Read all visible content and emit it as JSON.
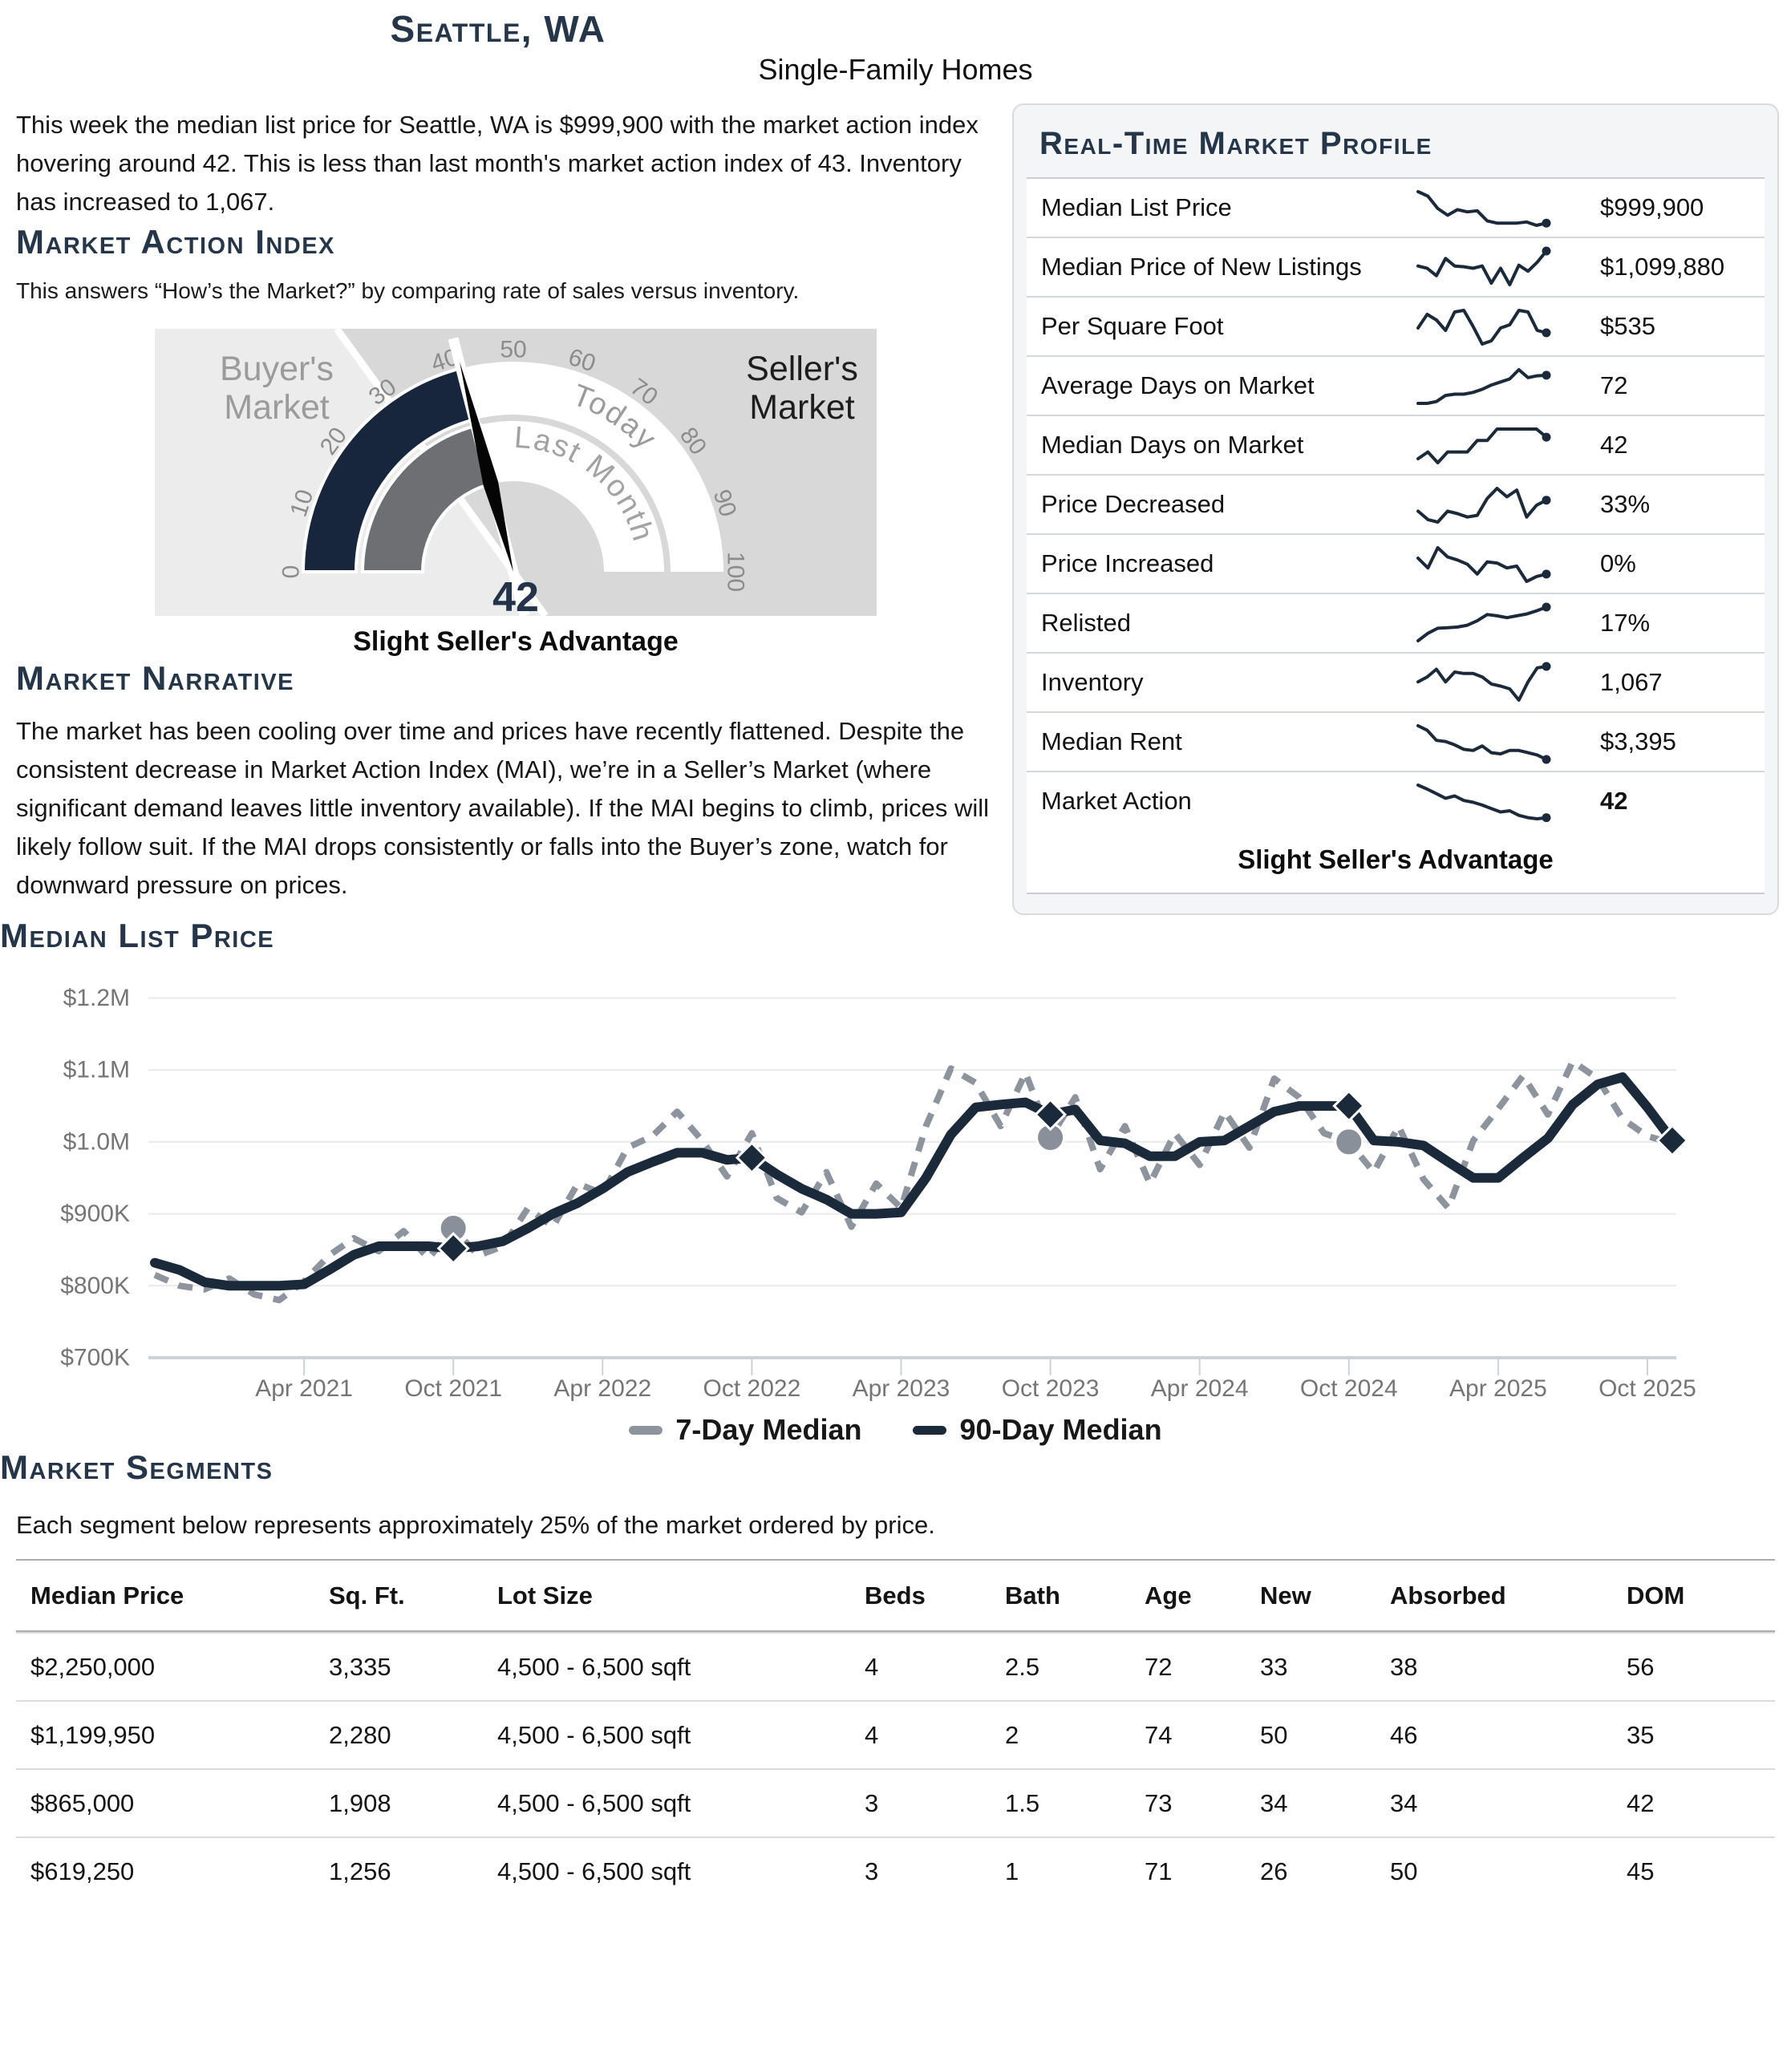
{
  "page": {
    "title": "Seattle, WA",
    "subtitle": "Single-Family Homes",
    "intro": "This week the median list price for Seattle, WA is $999,900 with the market action index hovering around 42. This is less than last month's market action index of 43. Inventory has increased to 1,067."
  },
  "colors": {
    "navy": "#1b2a3b",
    "heading_navy": "#25364a",
    "dashed_gray": "#8e949d",
    "axis_gray": "#757575",
    "grid_line": "#e8eaec",
    "axis_line": "#ccd2d8",
    "gauge_navy": "#17263c",
    "gauge_gray_ring": "#6e6f72",
    "gauge_bg_left": "#ececec",
    "gauge_bg_right": "#d8d8d9",
    "gauge_tick": "#8c8c8c",
    "buyer_text": "#9b9b9b",
    "seller_text": "#1d1d1d",
    "value_navy": "#22334a"
  },
  "market_action_index": {
    "heading": "Market Action Index",
    "description": "This answers “How’s the Market?” by comparing rate of sales versus inventory.",
    "gauge": {
      "min": 0,
      "max": 100,
      "ticks": [
        0,
        10,
        20,
        30,
        40,
        50,
        60,
        70,
        80,
        90,
        100
      ],
      "today_value": 42,
      "last_month_value": 43,
      "split_value": 30,
      "display_value": "42",
      "zone_left": "Buyer's Market",
      "zone_right": "Seller's Market",
      "ring_outer_label": "Today",
      "ring_inner_label": "Last Month",
      "caption": "Slight Seller's Advantage"
    }
  },
  "market_narrative": {
    "heading": "Market Narrative",
    "text": "The market has been cooling over time and prices have recently flattened. Despite the consistent decrease in Market Action Index (MAI), we’re in a Seller’s Market (where significant demand leaves little inventory available). If the MAI begins to climb, prices will likely follow suit. If the MAI drops consistently or falls into the Buyer’s zone, watch for downward pressure on prices."
  },
  "profile": {
    "heading": "Real-Time Market Profile",
    "caption": "Slight Seller's Advantage",
    "rows": [
      {
        "label": "Median List Price",
        "value": "$999,900",
        "spark": [
          90,
          82,
          60,
          48,
          58,
          54,
          56,
          38,
          34,
          34,
          34,
          36,
          30,
          34
        ]
      },
      {
        "label": "Median Price of New Listings",
        "value": "$1,099,880",
        "spark": [
          55,
          52,
          42,
          65,
          55,
          54,
          52,
          55,
          32,
          52,
          30,
          56,
          48,
          60,
          75
        ]
      },
      {
        "label": "Per Square Foot",
        "value": "$535",
        "spark": [
          48,
          65,
          58,
          45,
          68,
          70,
          50,
          28,
          32,
          48,
          52,
          70,
          68,
          45,
          42
        ]
      },
      {
        "label": "Average Days on Market",
        "value": "72",
        "spark": [
          15,
          15,
          18,
          28,
          30,
          30,
          33,
          38,
          45,
          50,
          55,
          70,
          57,
          60,
          61
        ]
      },
      {
        "label": "Median Days on Market",
        "value": "42",
        "spark": [
          18,
          28,
          12,
          28,
          28,
          28,
          45,
          45,
          62,
          62,
          62,
          62,
          62,
          50
        ]
      },
      {
        "label": "Price Decreased",
        "value": "33%",
        "spark": [
          45,
          35,
          32,
          45,
          42,
          38,
          40,
          60,
          72,
          62,
          70,
          38,
          52,
          58
        ]
      },
      {
        "label": "Price Increased",
        "value": "0%",
        "spark": [
          68,
          52,
          85,
          70,
          65,
          58,
          42,
          62,
          60,
          52,
          55,
          30,
          38,
          42
        ]
      },
      {
        "label": "Relisted",
        "value": "17%",
        "spark": [
          10,
          22,
          30,
          31,
          32,
          35,
          42,
          52,
          50,
          47,
          50,
          53,
          58,
          64
        ]
      },
      {
        "label": "Inventory",
        "value": "1,067",
        "spark": [
          48,
          55,
          66,
          48,
          62,
          60,
          60,
          55,
          45,
          42,
          38,
          22,
          48,
          68,
          70
        ]
      },
      {
        "label": "Median Rent",
        "value": "$3,395",
        "spark": [
          88,
          80,
          62,
          60,
          54,
          46,
          44,
          52,
          40,
          38,
          44,
          44,
          40,
          36,
          28
        ]
      },
      {
        "label": "Market Action",
        "value": "42",
        "bold": true,
        "spark": [
          85,
          78,
          70,
          62,
          66,
          58,
          55,
          50,
          44,
          38,
          40,
          32,
          28,
          26,
          28
        ]
      }
    ]
  },
  "chart_data": {
    "type": "line",
    "title": "Median List Price",
    "y_unit": "USD thousands",
    "ylim": [
      700,
      1200
    ],
    "grid": true,
    "legend_position": "bottom",
    "x_start": "Oct 2020",
    "x_end": "Nov 2025",
    "x_step": "month",
    "x_tick_labels": [
      "Apr 2021",
      "Oct 2021",
      "Apr 2022",
      "Oct 2022",
      "Apr 2023",
      "Oct 2023",
      "Apr 2024",
      "Oct 2024",
      "Apr 2025",
      "Oct 2025"
    ],
    "x_tick_indices": [
      6,
      12,
      18,
      24,
      30,
      36,
      42,
      48,
      54,
      60
    ],
    "y_ticks": [
      {
        "value": 700,
        "label": "$700K"
      },
      {
        "value": 800,
        "label": "$800K"
      },
      {
        "value": 900,
        "label": "$900K"
      },
      {
        "value": 1000,
        "label": "$1.0M"
      },
      {
        "value": 1100,
        "label": "$1.1M"
      },
      {
        "value": 1200,
        "label": "$1.2M"
      }
    ],
    "series": [
      {
        "name": "7-Day Median",
        "style": "dashed",
        "color": "#8e949d",
        "marker": "circle",
        "marker_indices": [
          12,
          36,
          48
        ],
        "values": [
          815,
          800,
          795,
          810,
          788,
          780,
          806,
          842,
          866,
          848,
          876,
          838,
          880,
          842,
          855,
          908,
          882,
          942,
          928,
          992,
          1008,
          1042,
          1002,
          952,
          1012,
          922,
          902,
          958,
          882,
          942,
          908,
          1022,
          1102,
          1082,
          1022,
          1096,
          1006,
          1062,
          962,
          1022,
          942,
          1012,
          968,
          1042,
          992,
          1088,
          1062,
          1012,
          1000,
          958,
          1022,
          948,
          908,
          1002,
          1046,
          1092,
          1038,
          1112,
          1088,
          1032,
          1008,
          998
        ]
      },
      {
        "name": "90-Day Median",
        "style": "solid",
        "color": "#1b2a3b",
        "marker": "diamond",
        "marker_indices": [
          12,
          24,
          36,
          48,
          61
        ],
        "values": [
          832,
          822,
          805,
          800,
          800,
          800,
          802,
          822,
          843,
          855,
          855,
          855,
          852,
          855,
          862,
          880,
          900,
          915,
          935,
          958,
          972,
          985,
          985,
          975,
          978,
          955,
          935,
          920,
          900,
          900,
          902,
          950,
          1010,
          1048,
          1052,
          1055,
          1038,
          1045,
          1002,
          998,
          980,
          980,
          1000,
          1002,
          1022,
          1042,
          1050,
          1050,
          1050,
          1002,
          1000,
          995,
          972,
          950,
          950,
          978,
          1005,
          1052,
          1080,
          1090,
          1048,
          1002
        ]
      }
    ]
  },
  "segments": {
    "heading": "Market Segments",
    "note": "Each segment below represents approximately 25% of the market ordered by price.",
    "columns": [
      "Median Price",
      "Sq. Ft.",
      "Lot Size",
      "Beds",
      "Bath",
      "Age",
      "New",
      "Absorbed",
      "DOM"
    ],
    "rows": [
      [
        "$2,250,000",
        "3,335",
        "4,500 - 6,500 sqft",
        "4",
        "2.5",
        "72",
        "33",
        "38",
        "56"
      ],
      [
        "$1,199,950",
        "2,280",
        "4,500 - 6,500 sqft",
        "4",
        "2",
        "74",
        "50",
        "46",
        "35"
      ],
      [
        "$865,000",
        "1,908",
        "4,500 - 6,500 sqft",
        "3",
        "1.5",
        "73",
        "34",
        "34",
        "42"
      ],
      [
        "$619,250",
        "1,256",
        "4,500 - 6,500 sqft",
        "3",
        "1",
        "71",
        "26",
        "50",
        "45"
      ]
    ]
  }
}
